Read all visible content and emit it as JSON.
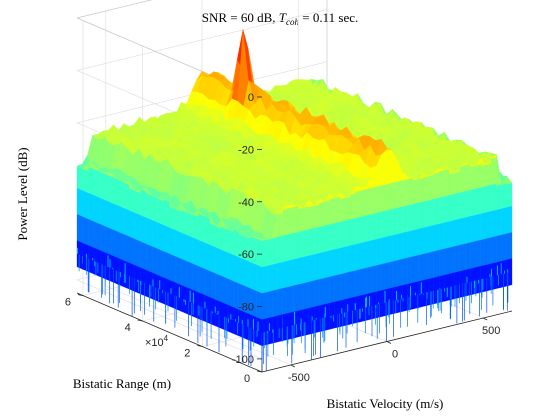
{
  "chart_data": {
    "type": "surface",
    "title": "SNR = 60 dB, T_coh = 0.11 sec.",
    "title_parts": {
      "prefix": "SNR = 60 dB, ",
      "symbol": "T",
      "subscript": "coh",
      "suffix": " = 0.11 sec."
    },
    "xlabel": "Bistatic Velocity (m/s)",
    "ylabel": "Bistatic Range (m)",
    "zlabel": "Power Level (dB)",
    "x_ticks": [
      "-500",
      "0",
      "500"
    ],
    "y_ticks": [
      "0",
      "2",
      "4",
      "6"
    ],
    "y_exponent": {
      "base": "×10",
      "power": "4"
    },
    "z_ticks": [
      "-100",
      "-80",
      "-60",
      "-40",
      "-20",
      "0"
    ],
    "xlim": [
      -650,
      650
    ],
    "ylim": [
      0,
      62000
    ],
    "zlim": [
      -105,
      0
    ],
    "colormap": "jet",
    "grid": true,
    "noise_floor_db": -45,
    "noise_floor_db_edge": -55,
    "clutter_ridge_db": -30,
    "target_peak": {
      "velocity": -20,
      "range": 47000,
      "power_db": -17
    },
    "description_series": [
      {
        "name": "clutter ridge along range axis at zero velocity",
        "values": [
          -30
        ]
      }
    ]
  }
}
